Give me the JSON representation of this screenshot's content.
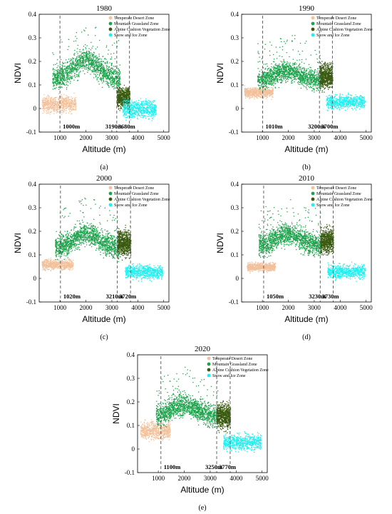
{
  "chart_data": [
    {
      "type": "scatter",
      "panel_label": "(a)",
      "title": "1980",
      "xlabel": "Altitude (m)",
      "ylabel": "NDVI",
      "xticks": [
        "1000",
        "2000",
        "3000",
        "4000",
        "5000"
      ],
      "yticks": [
        "-0.1",
        "0",
        "0.1",
        "0.2",
        "0.3",
        "0.4"
      ],
      "xlim": [
        200,
        5200
      ],
      "ylim": [
        -0.1,
        0.4
      ],
      "legend_position": "top-right",
      "thresholds": [
        {
          "altitude": 1000,
          "label": "1000m"
        },
        {
          "altitude": 3190,
          "label": "3190m"
        },
        {
          "altitude": 3680,
          "label": "3680m"
        }
      ],
      "series": [
        {
          "name": "Temperate Desert Zone",
          "color": "#f2c19b",
          "x_range": [
            300,
            1600
          ],
          "y_center": 0.02,
          "y_spread": 0.04
        },
        {
          "name": "Mountain Grassland Zone",
          "color": "#1ea34d",
          "x_range": [
            700,
            3300
          ],
          "peak_x": 2000,
          "peak_y": 0.21,
          "base_y": 0.13,
          "y_spread": 0.06
        },
        {
          "name": "Alpine Cushion Vegetation Zone",
          "color": "#3a5a10",
          "x_range": [
            3190,
            3680
          ],
          "y_center": 0.05,
          "y_spread": 0.05
        },
        {
          "name": "Snow and Ice Zone",
          "color": "#1ef0f0",
          "x_range": [
            3400,
            4700
          ],
          "y_center": 0.0,
          "y_spread": 0.045
        }
      ]
    },
    {
      "type": "scatter",
      "panel_label": "(b)",
      "title": "1990",
      "xlabel": "Altitude (m)",
      "ylabel": "NDVI",
      "xticks": [
        "1000",
        "2000",
        "3000",
        "4000",
        "5000"
      ],
      "yticks": [
        "-0.1",
        "0",
        "0.1",
        "0.2",
        "0.3",
        "0.4"
      ],
      "xlim": [
        200,
        5200
      ],
      "ylim": [
        -0.1,
        0.4
      ],
      "legend_position": "top-right",
      "thresholds": [
        {
          "altitude": 1010,
          "label": "1010m"
        },
        {
          "altitude": 3200,
          "label": "3200m"
        },
        {
          "altitude": 3700,
          "label": "3700m"
        }
      ],
      "series": [
        {
          "name": "Temperate Desert Zone",
          "color": "#f2c19b",
          "x_range": [
            300,
            1400
          ],
          "y_center": 0.07,
          "y_spread": 0.025
        },
        {
          "name": "Mountain Grassland Zone",
          "color": "#1ea34d",
          "x_range": [
            800,
            3250
          ],
          "peak_x": 1950,
          "peak_y": 0.16,
          "base_y": 0.12,
          "y_spread": 0.05
        },
        {
          "name": "Alpine Cushion Vegetation Zone",
          "color": "#3a5a10",
          "x_range": [
            3200,
            3700
          ],
          "y_center": 0.14,
          "y_spread": 0.06
        },
        {
          "name": "Snow and Ice Zone",
          "color": "#1ef0f0",
          "x_range": [
            3450,
            4950
          ],
          "y_center": 0.03,
          "y_spread": 0.035
        }
      ]
    },
    {
      "type": "scatter",
      "panel_label": "(c)",
      "title": "2000",
      "xlabel": "Altitude (m)",
      "ylabel": "NDVI",
      "xticks": [
        "1000",
        "2000",
        "3000",
        "4000",
        "5000"
      ],
      "yticks": [
        "-0.1",
        "0",
        "0.1",
        "0.2",
        "0.3",
        "0.4"
      ],
      "xlim": [
        200,
        5200
      ],
      "ylim": [
        -0.1,
        0.4
      ],
      "legend_position": "top-right",
      "thresholds": [
        {
          "altitude": 1020,
          "label": "1020m"
        },
        {
          "altitude": 3210,
          "label": "3210m"
        },
        {
          "altitude": 3720,
          "label": "3720m"
        }
      ],
      "series": [
        {
          "name": "Temperate Desert Zone",
          "color": "#f2c19b",
          "x_range": [
            300,
            1500
          ],
          "y_center": 0.06,
          "y_spread": 0.025
        },
        {
          "name": "Mountain Grassland Zone",
          "color": "#1ea34d",
          "x_range": [
            800,
            3250
          ],
          "peak_x": 2000,
          "peak_y": 0.19,
          "base_y": 0.13,
          "y_spread": 0.055
        },
        {
          "name": "Alpine Cushion Vegetation Zone",
          "color": "#3a5a10",
          "x_range": [
            3210,
            3720
          ],
          "y_center": 0.15,
          "y_spread": 0.06
        },
        {
          "name": "Snow and Ice Zone",
          "color": "#1ef0f0",
          "x_range": [
            3500,
            4950
          ],
          "y_center": 0.03,
          "y_spread": 0.035
        }
      ]
    },
    {
      "type": "scatter",
      "panel_label": "(d)",
      "title": "2010",
      "xlabel": "Altitude (m)",
      "ylabel": "NDVI",
      "xticks": [
        "1000",
        "2000",
        "3000",
        "4000",
        "5000"
      ],
      "yticks": [
        "-0.1",
        "0",
        "0.1",
        "0.2",
        "0.3",
        "0.4"
      ],
      "xlim": [
        200,
        5200
      ],
      "ylim": [
        -0.1,
        0.4
      ],
      "legend_position": "top-right",
      "thresholds": [
        {
          "altitude": 1050,
          "label": "1050m"
        },
        {
          "altitude": 3230,
          "label": "3230m"
        },
        {
          "altitude": 3730,
          "label": "3730m"
        }
      ],
      "series": [
        {
          "name": "Temperate Desert Zone",
          "color": "#f2c19b",
          "x_range": [
            400,
            1500
          ],
          "y_center": 0.05,
          "y_spread": 0.02
        },
        {
          "name": "Mountain Grassland Zone",
          "color": "#1ea34d",
          "x_range": [
            850,
            3250
          ],
          "peak_x": 2000,
          "peak_y": 0.19,
          "base_y": 0.14,
          "y_spread": 0.055
        },
        {
          "name": "Alpine Cushion Vegetation Zone",
          "color": "#3a5a10",
          "x_range": [
            3230,
            3730
          ],
          "y_center": 0.16,
          "y_spread": 0.06
        },
        {
          "name": "Snow and Ice Zone",
          "color": "#1ef0f0",
          "x_range": [
            3500,
            4950
          ],
          "y_center": 0.03,
          "y_spread": 0.035
        }
      ]
    },
    {
      "type": "scatter",
      "panel_label": "(e)",
      "title": "2020",
      "xlabel": "Altitude (m)",
      "ylabel": "NDVI",
      "xticks": [
        "1000",
        "2000",
        "3000",
        "4000",
        "5000"
      ],
      "yticks": [
        "-0.1",
        "0",
        "0.1",
        "0.2",
        "0.3",
        "0.4"
      ],
      "xlim": [
        200,
        5200
      ],
      "ylim": [
        -0.1,
        0.4
      ],
      "legend_position": "top-right",
      "thresholds": [
        {
          "altitude": 1100,
          "label": "1100m"
        },
        {
          "altitude": 3250,
          "label": "3250m"
        },
        {
          "altitude": 3770,
          "label": "3770m"
        }
      ],
      "series": [
        {
          "name": "Temperate Desert Zone",
          "color": "#f2c19b",
          "x_range": [
            300,
            1450
          ],
          "y_center": 0.08,
          "y_spread": 0.045
        },
        {
          "name": "Mountain Grassland Zone",
          "color": "#1ea34d",
          "x_range": [
            900,
            3300
          ],
          "peak_x": 1950,
          "peak_y": 0.19,
          "base_y": 0.14,
          "y_spread": 0.055
        },
        {
          "name": "Alpine Cushion Vegetation Zone",
          "color": "#3a5a10",
          "x_range": [
            3250,
            3770
          ],
          "y_center": 0.14,
          "y_spread": 0.06
        },
        {
          "name": "Snow and Ice Zone",
          "color": "#1ef0f0",
          "x_range": [
            3500,
            4950
          ],
          "y_center": 0.03,
          "y_spread": 0.04
        }
      ]
    }
  ]
}
